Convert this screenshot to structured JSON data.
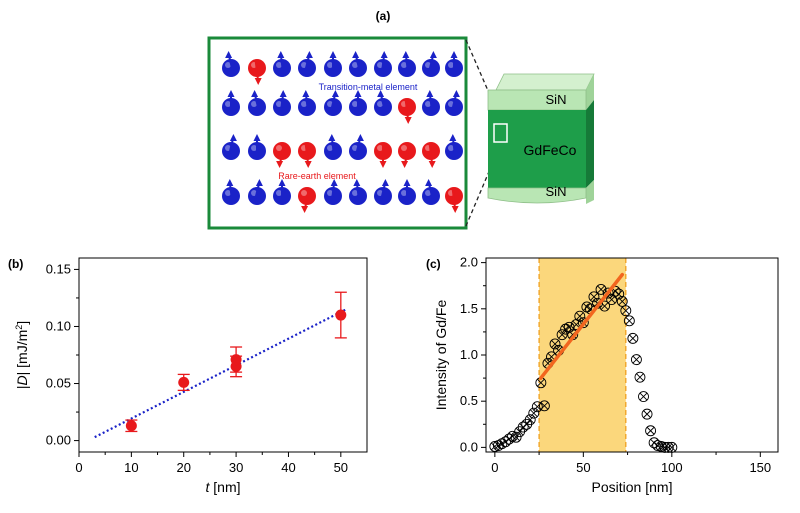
{
  "panel_a": {
    "label": "(a)",
    "lattice_labels": {
      "transition_metal": "Transition-metal element",
      "rare_earth": "Rare-earth element"
    },
    "lattice_rows": [
      [
        "B",
        "R",
        "B",
        "B",
        "B",
        "B",
        "B",
        "B",
        "B",
        "B"
      ],
      [
        "B",
        "B",
        "B",
        "B",
        "B",
        "B",
        "B",
        "R",
        "B",
        "B"
      ],
      [
        "B",
        "B",
        "R",
        "R",
        "B",
        "B",
        "R",
        "R",
        "R",
        "B"
      ],
      [
        "B",
        "B",
        "B",
        "R",
        "B",
        "B",
        "B",
        "B",
        "B",
        "R"
      ]
    ],
    "stack_layers": {
      "top": "SiN",
      "middle": "GdFeCo",
      "bottom": "SiN"
    },
    "colors": {
      "tm": "#1a22c8",
      "re": "#e8191c",
      "frame": "#1a8a3a",
      "film": "#1e9e4a",
      "cap": "#b9e6b4"
    }
  },
  "chart_data": [
    {
      "panel": "(b)",
      "type": "scatter",
      "xlabel_italic": "t",
      "xlabel_rest": "[nm]",
      "ylabel": "|D| [mJ/m2]",
      "ylabel_parts": {
        "bar_left": "|",
        "italic": "D",
        "bar_right": "|",
        "unit_pre": "[mJ/m",
        "unit_sup": "2",
        "unit_post": "]"
      },
      "xlim": [
        0,
        55
      ],
      "ylim": [
        -0.01,
        0.16
      ],
      "xticks": [
        0,
        10,
        20,
        30,
        40,
        50
      ],
      "yticks": [
        0.0,
        0.05,
        0.1,
        0.15
      ],
      "ytick_labels": [
        "0.00",
        "0.05",
        "0.10",
        "0.15"
      ],
      "points": [
        {
          "x": 10,
          "y": 0.013,
          "err": 0.005
        },
        {
          "x": 20,
          "y": 0.051,
          "err": 0.007
        },
        {
          "x": 30,
          "y": 0.065,
          "err": 0.009
        },
        {
          "x": 30,
          "y": 0.071,
          "err": 0.011
        },
        {
          "x": 50,
          "y": 0.11,
          "err": 0.02
        }
      ],
      "fit_line": {
        "x": [
          3,
          51
        ],
        "y": [
          0.003,
          0.115
        ]
      },
      "colors": {
        "points": "#e8191c",
        "fit": "#1a22c8"
      }
    },
    {
      "panel": "(c)",
      "type": "scatter",
      "xlabel": "Position [nm]",
      "ylabel": "Intensity of Gd/Fe",
      "xlim": [
        -5,
        160
      ],
      "ylim": [
        -0.05,
        2.05
      ],
      "xticks": [
        0,
        50,
        100,
        150
      ],
      "yticks": [
        0.0,
        0.5,
        1.0,
        1.5,
        2.0
      ],
      "ytick_labels": [
        "0.0",
        "0.5",
        "1.0",
        "1.5",
        "2.0"
      ],
      "shaded_region": [
        25,
        74
      ],
      "x": [
        0,
        2,
        4,
        6,
        8,
        10,
        12,
        14,
        16,
        18,
        20,
        22,
        24,
        26,
        28,
        30,
        32,
        34,
        36,
        38,
        40,
        42,
        44,
        46,
        48,
        50,
        52,
        54,
        56,
        58,
        60,
        62,
        64,
        66,
        68,
        70,
        72,
        74,
        76,
        78,
        80,
        82,
        84,
        86,
        88,
        90,
        92,
        94,
        96,
        98,
        100
      ],
      "y": [
        0.01,
        0.02,
        0.04,
        0.06,
        0.09,
        0.12,
        0.11,
        0.17,
        0.22,
        0.25,
        0.3,
        0.37,
        0.44,
        0.7,
        0.45,
        0.91,
        0.98,
        1.12,
        1.05,
        1.22,
        1.28,
        1.3,
        1.22,
        1.33,
        1.42,
        1.35,
        1.52,
        1.5,
        1.63,
        1.56,
        1.71,
        1.53,
        1.67,
        1.6,
        1.69,
        1.66,
        1.58,
        1.48,
        1.37,
        1.18,
        0.95,
        0.76,
        0.55,
        0.36,
        0.18,
        0.05,
        0.02,
        0.01,
        0.0,
        0.0,
        0.0
      ],
      "fit_line": {
        "x": [
          26,
          72
        ],
        "y": [
          0.75,
          1.87
        ]
      },
      "colors": {
        "markers": "#000000",
        "shade": "#fbd77c",
        "shade_edge": "#f0a020",
        "fit": "#f2661f"
      }
    }
  ]
}
